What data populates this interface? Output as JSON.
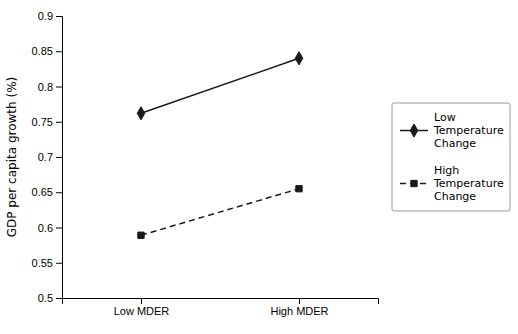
{
  "chart_data": {
    "type": "line",
    "categories": [
      "Low MDER",
      "High MDER"
    ],
    "series": [
      {
        "name": "Low\nTemperature\nChange",
        "color": "#1a1a1a",
        "values": [
          0.762,
          0.84
        ],
        "marker": "diamond",
        "line_style": "solid"
      },
      {
        "name": "High\nTemperature\nChange",
        "color": "#1a1a1a",
        "values": [
          0.589,
          0.655
        ],
        "marker": "square",
        "line_style": "dashed"
      }
    ],
    "y_label": "GDP per capita growth (%)",
    "ylim": [
      0.5,
      0.9
    ],
    "yticks": [
      0.5,
      0.55,
      0.6,
      0.65,
      0.7,
      0.75,
      0.8,
      0.85,
      0.9
    ],
    "grid": false,
    "legend": "right"
  }
}
